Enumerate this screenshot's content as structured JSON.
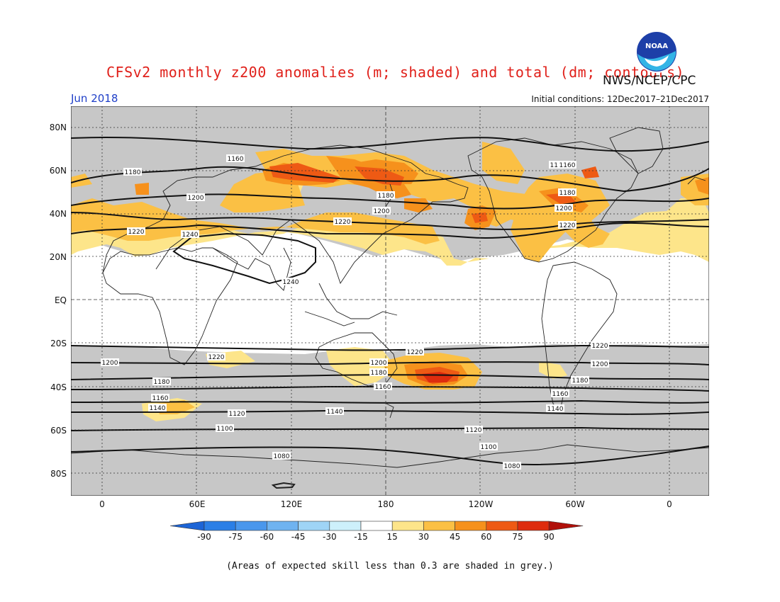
{
  "title": "CFSv2 monthly z200 anomalies (m; shaded) and total (dm; contours)",
  "agency": "NWS/NCEP/CPC",
  "logo_text": "NOAA",
  "month": "Jun 2018",
  "initial_conditions": "Initial conditions: 12Dec2017–21Dec2017",
  "footnote": "(Areas of expected skill less than 0.3 are shaded in grey.)",
  "lat_labels": [
    "80N",
    "60N",
    "40N",
    "20N",
    "EQ",
    "20S",
    "40S",
    "60S",
    "80S"
  ],
  "lon_labels": [
    "0",
    "60E",
    "120E",
    "180",
    "120W",
    "60W",
    "0"
  ],
  "colorbar": {
    "ticks": [
      "-90",
      "-75",
      "-60",
      "-45",
      "-30",
      "-15",
      "15",
      "30",
      "45",
      "60",
      "75",
      "90"
    ],
    "colors": [
      "#1c64d6",
      "#2b7fe6",
      "#4a97ec",
      "#6fb3f0",
      "#9fd4f6",
      "#cdf0fb",
      "#ffffff",
      "#fde58a",
      "#fbc044",
      "#f6911c",
      "#ee5a14",
      "#de2c0e",
      "#b0100a"
    ]
  },
  "colors": {
    "skill_grey": "#c7c7c7",
    "land_outline": "#222222",
    "contour": "#111111"
  },
  "contour_labels": [
    "1160",
    "1180",
    "1200",
    "1220",
    "1240",
    "1240",
    "1220",
    "1200",
    "1180",
    "1160",
    "1180",
    "1200",
    "1220",
    "1160",
    "1220",
    "1200",
    "1180",
    "1160",
    "1140",
    "1120",
    "1100",
    "1080",
    "1220",
    "1200",
    "1180",
    "1160",
    "1140",
    "1120",
    "1100",
    "1080",
    "1200",
    "1180",
    "1160",
    "1140",
    "1220"
  ]
}
